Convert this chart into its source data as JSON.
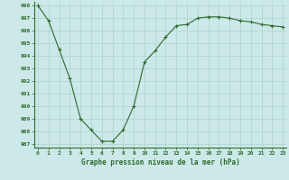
{
  "x": [
    0,
    1,
    2,
    3,
    4,
    5,
    6,
    7,
    8,
    9,
    10,
    11,
    12,
    13,
    14,
    15,
    16,
    17,
    18,
    19,
    20,
    21,
    22,
    23
  ],
  "y": [
    998.0,
    996.8,
    994.5,
    992.2,
    989.0,
    988.1,
    987.2,
    987.2,
    988.1,
    990.0,
    993.5,
    994.4,
    995.5,
    996.4,
    996.5,
    997.0,
    997.1,
    997.1,
    997.0,
    996.8,
    996.7,
    996.5,
    996.4,
    996.3
  ],
  "line_color": "#2d6a2d",
  "marker": "+",
  "marker_color": "#2d6a2d",
  "bg_color": "#cce8e8",
  "grid_color": "#aad4cc",
  "xlabel": "Graphe pression niveau de la mer (hPa)",
  "xlabel_color": "#2d6a2d",
  "tick_color": "#2d6a2d",
  "ylim_min": 987,
  "ylim_max": 998,
  "yticks": [
    987,
    988,
    989,
    990,
    991,
    992,
    993,
    994,
    995,
    996,
    997,
    998
  ],
  "xtick_labels": [
    "0",
    "1",
    "2",
    "3",
    "4",
    "5",
    "6",
    "7",
    "8",
    "9",
    "10",
    "11",
    "12",
    "13",
    "14",
    "15",
    "16",
    "17",
    "18",
    "19",
    "20",
    "21",
    "22",
    "23"
  ]
}
